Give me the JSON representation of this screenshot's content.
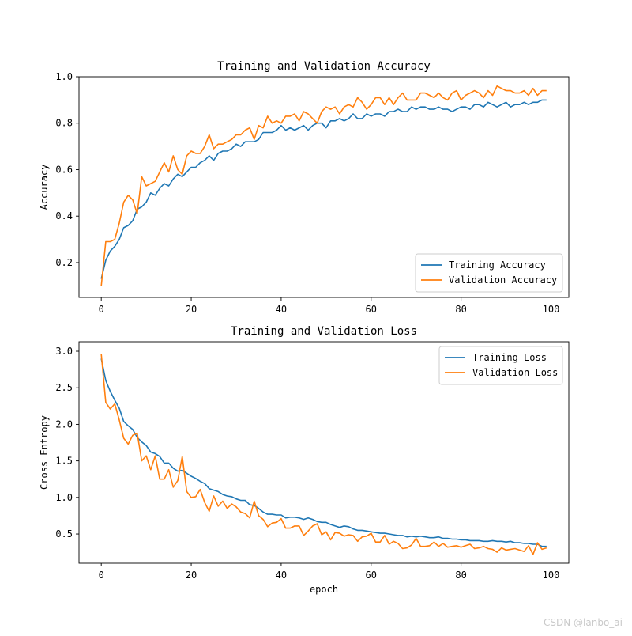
{
  "watermark": "CSDN @lanbo_ai",
  "colors": {
    "training": "#1f77b4",
    "validation": "#ff7f0e",
    "axis": "#000000",
    "legend_border": "#cccccc"
  },
  "chart_data": [
    {
      "type": "line",
      "title": "Training and Validation Accuracy",
      "xlabel": "",
      "ylabel": "Accuracy",
      "xlim": [
        -4.95,
        103.95
      ],
      "ylim": [
        0.05,
        1.0
      ],
      "xticks": [
        0,
        20,
        40,
        60,
        80,
        100
      ],
      "yticks": [
        0.2,
        0.4,
        0.6,
        0.8,
        1.0
      ],
      "ytick_labels": [
        "0.2",
        "0.4",
        "0.6",
        "0.8",
        "1.0"
      ],
      "legend_position": "bottom-right",
      "series": [
        {
          "name": "Training Accuracy",
          "values": [
            0.13,
            0.21,
            0.25,
            0.27,
            0.3,
            0.35,
            0.36,
            0.38,
            0.43,
            0.44,
            0.46,
            0.5,
            0.49,
            0.52,
            0.54,
            0.53,
            0.56,
            0.58,
            0.57,
            0.59,
            0.61,
            0.61,
            0.63,
            0.64,
            0.66,
            0.64,
            0.67,
            0.68,
            0.68,
            0.69,
            0.71,
            0.7,
            0.72,
            0.72,
            0.72,
            0.73,
            0.76,
            0.76,
            0.76,
            0.77,
            0.79,
            0.77,
            0.78,
            0.77,
            0.78,
            0.79,
            0.77,
            0.79,
            0.8,
            0.8,
            0.78,
            0.81,
            0.81,
            0.82,
            0.81,
            0.82,
            0.84,
            0.82,
            0.82,
            0.84,
            0.83,
            0.84,
            0.84,
            0.83,
            0.85,
            0.85,
            0.86,
            0.85,
            0.85,
            0.87,
            0.86,
            0.87,
            0.87,
            0.86,
            0.86,
            0.87,
            0.86,
            0.86,
            0.85,
            0.86,
            0.87,
            0.87,
            0.86,
            0.88,
            0.88,
            0.87,
            0.89,
            0.88,
            0.87,
            0.88,
            0.89,
            0.87,
            0.88,
            0.88,
            0.89,
            0.88,
            0.89,
            0.89,
            0.9,
            0.9
          ]
        },
        {
          "name": "Validation Accuracy",
          "values": [
            0.1,
            0.29,
            0.29,
            0.3,
            0.37,
            0.46,
            0.49,
            0.47,
            0.41,
            0.57,
            0.53,
            0.54,
            0.55,
            0.59,
            0.63,
            0.59,
            0.66,
            0.6,
            0.58,
            0.66,
            0.68,
            0.67,
            0.67,
            0.7,
            0.75,
            0.69,
            0.71,
            0.71,
            0.72,
            0.73,
            0.75,
            0.75,
            0.77,
            0.78,
            0.73,
            0.79,
            0.78,
            0.83,
            0.8,
            0.81,
            0.8,
            0.83,
            0.83,
            0.84,
            0.81,
            0.85,
            0.84,
            0.82,
            0.8,
            0.85,
            0.87,
            0.86,
            0.87,
            0.84,
            0.87,
            0.88,
            0.87,
            0.91,
            0.89,
            0.86,
            0.88,
            0.91,
            0.91,
            0.88,
            0.91,
            0.88,
            0.91,
            0.93,
            0.9,
            0.9,
            0.9,
            0.93,
            0.93,
            0.92,
            0.91,
            0.93,
            0.91,
            0.9,
            0.93,
            0.94,
            0.9,
            0.92,
            0.93,
            0.94,
            0.93,
            0.91,
            0.94,
            0.92,
            0.96,
            0.95,
            0.94,
            0.94,
            0.93,
            0.93,
            0.94,
            0.92,
            0.95,
            0.92,
            0.94,
            0.94
          ]
        }
      ]
    },
    {
      "type": "line",
      "title": "Training and Validation Loss",
      "xlabel": "epoch",
      "ylabel": "Cross Entropy",
      "xlim": [
        -4.95,
        103.95
      ],
      "ylim": [
        0.1,
        3.13
      ],
      "xticks": [
        0,
        20,
        40,
        60,
        80,
        100
      ],
      "yticks": [
        0.5,
        1.0,
        1.5,
        2.0,
        2.5,
        3.0
      ],
      "ytick_labels": [
        "0.5",
        "1.0",
        "1.5",
        "2.0",
        "2.5",
        "3.0"
      ],
      "legend_position": "top-right",
      "series": [
        {
          "name": "Training Loss",
          "values": [
            2.9,
            2.6,
            2.45,
            2.33,
            2.22,
            2.04,
            1.98,
            1.93,
            1.82,
            1.76,
            1.71,
            1.62,
            1.6,
            1.56,
            1.47,
            1.47,
            1.4,
            1.36,
            1.37,
            1.33,
            1.29,
            1.26,
            1.22,
            1.19,
            1.12,
            1.1,
            1.08,
            1.04,
            1.02,
            1.01,
            0.98,
            0.96,
            0.96,
            0.9,
            0.89,
            0.85,
            0.8,
            0.77,
            0.77,
            0.76,
            0.76,
            0.72,
            0.73,
            0.73,
            0.72,
            0.7,
            0.72,
            0.7,
            0.67,
            0.66,
            0.66,
            0.63,
            0.61,
            0.59,
            0.61,
            0.6,
            0.57,
            0.55,
            0.55,
            0.54,
            0.53,
            0.52,
            0.51,
            0.51,
            0.5,
            0.49,
            0.48,
            0.48,
            0.46,
            0.47,
            0.46,
            0.47,
            0.46,
            0.45,
            0.45,
            0.46,
            0.44,
            0.44,
            0.43,
            0.43,
            0.42,
            0.42,
            0.41,
            0.41,
            0.41,
            0.4,
            0.4,
            0.41,
            0.4,
            0.4,
            0.39,
            0.4,
            0.38,
            0.38,
            0.37,
            0.37,
            0.36,
            0.36,
            0.33,
            0.33
          ]
        },
        {
          "name": "Validation Loss",
          "values": [
            2.96,
            2.3,
            2.21,
            2.28,
            2.06,
            1.81,
            1.73,
            1.85,
            1.88,
            1.5,
            1.57,
            1.38,
            1.57,
            1.25,
            1.25,
            1.38,
            1.14,
            1.23,
            1.56,
            1.08,
            1.0,
            1.01,
            1.11,
            0.93,
            0.81,
            1.02,
            0.88,
            0.95,
            0.85,
            0.91,
            0.87,
            0.8,
            0.78,
            0.72,
            0.95,
            0.75,
            0.7,
            0.6,
            0.65,
            0.66,
            0.71,
            0.58,
            0.58,
            0.61,
            0.61,
            0.48,
            0.54,
            0.61,
            0.64,
            0.49,
            0.53,
            0.42,
            0.52,
            0.51,
            0.47,
            0.49,
            0.48,
            0.4,
            0.46,
            0.47,
            0.51,
            0.39,
            0.39,
            0.48,
            0.36,
            0.4,
            0.37,
            0.3,
            0.31,
            0.35,
            0.44,
            0.33,
            0.33,
            0.34,
            0.39,
            0.33,
            0.37,
            0.32,
            0.33,
            0.34,
            0.32,
            0.34,
            0.36,
            0.3,
            0.31,
            0.33,
            0.3,
            0.29,
            0.25,
            0.31,
            0.28,
            0.29,
            0.3,
            0.28,
            0.26,
            0.34,
            0.22,
            0.38,
            0.29,
            0.31
          ]
        }
      ]
    }
  ]
}
